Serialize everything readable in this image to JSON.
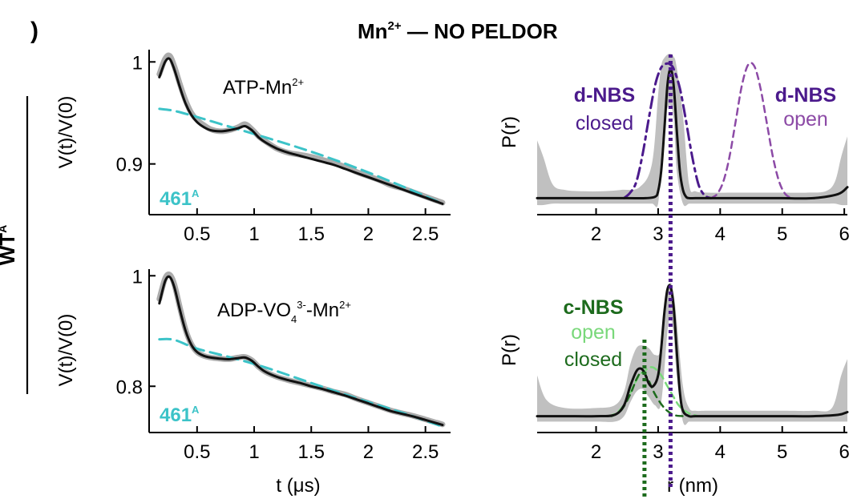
{
  "figure": {
    "panel_label": ")",
    "title_main": "Mn",
    "title_sup": "2+",
    "title_rest": " — NO PELDOR",
    "row_label": "WT",
    "row_label_sup": "A"
  },
  "colors": {
    "data_gray": "#a3a3a3",
    "fit_black": "#111111",
    "background_cyan": "#3cc3c8",
    "dnbs_dark": "#4b1a8c",
    "dnbs_light": "#8c4aa6",
    "cnbs_dark": "#1d6b1d",
    "cnbs_light": "#79d87a"
  },
  "chart_data": [
    {
      "id": "top-left",
      "type": "line",
      "annotation_main": "ATP-Mn",
      "annotation_sup": "2+",
      "label_main": "461",
      "label_sup": "A",
      "xlabel": "",
      "ylabel": "V(t)/V(0)",
      "xlim": [
        0.08,
        2.72
      ],
      "ylim": [
        0.855,
        1.012
      ],
      "xticks": [
        0.5,
        1,
        1.5,
        2,
        2.5
      ],
      "xtick_labels": [
        "0.5",
        "1",
        "1.5",
        "2",
        "2.5"
      ],
      "yticks": [
        1,
        0.9
      ],
      "ytick_labels": [
        "1",
        "0.9"
      ],
      "series": [
        {
          "name": "data",
          "style": "gray-dots",
          "x": [
            0.17,
            0.22,
            0.26,
            0.3,
            0.35,
            0.4,
            0.45,
            0.5,
            0.56,
            0.62,
            0.7,
            0.78,
            0.86,
            0.92,
            0.98,
            1.04,
            1.1,
            1.2,
            1.3,
            1.4,
            1.5,
            1.6,
            1.7,
            1.8,
            1.9,
            2.0,
            2.1,
            2.2,
            2.3,
            2.4,
            2.5,
            2.6,
            2.65
          ],
          "y": [
            0.988,
            1.003,
            1.006,
            0.996,
            0.978,
            0.962,
            0.95,
            0.943,
            0.938,
            0.934,
            0.932,
            0.933,
            0.936,
            0.939,
            0.934,
            0.927,
            0.922,
            0.915,
            0.911,
            0.909,
            0.907,
            0.904,
            0.901,
            0.897,
            0.892,
            0.888,
            0.884,
            0.879,
            0.876,
            0.872,
            0.868,
            0.864,
            0.862
          ]
        },
        {
          "name": "fit",
          "style": "black-solid",
          "x": [
            0.17,
            0.22,
            0.26,
            0.3,
            0.35,
            0.4,
            0.45,
            0.5,
            0.56,
            0.62,
            0.7,
            0.78,
            0.86,
            0.92,
            0.98,
            1.04,
            1.1,
            1.2,
            1.3,
            1.4,
            1.5,
            1.6,
            1.7,
            1.8,
            1.9,
            2.0,
            2.1,
            2.2,
            2.3,
            2.4,
            2.5,
            2.6,
            2.65
          ],
          "y": [
            0.985,
            1.0,
            1.003,
            0.993,
            0.975,
            0.959,
            0.948,
            0.941,
            0.936,
            0.933,
            0.932,
            0.933,
            0.935,
            0.937,
            0.933,
            0.926,
            0.921,
            0.915,
            0.911,
            0.908,
            0.905,
            0.902,
            0.899,
            0.895,
            0.891,
            0.887,
            0.883,
            0.879,
            0.875,
            0.871,
            0.867,
            0.863,
            0.861
          ]
        },
        {
          "name": "background",
          "style": "cyan-dashed",
          "x": [
            0.17,
            0.3,
            0.5,
            0.8,
            1.1,
            1.5,
            1.9,
            2.3,
            2.65
          ],
          "y": [
            0.954,
            0.952,
            0.946,
            0.936,
            0.926,
            0.912,
            0.896,
            0.878,
            0.861
          ]
        }
      ]
    },
    {
      "id": "bottom-left",
      "type": "line",
      "annotation_main": "ADP-VO",
      "annotation_sub": "4",
      "annotation_sup1": "3-",
      "annotation_mid": "-Mn",
      "annotation_sup2": "2+",
      "label_main": "461",
      "label_sup": "A",
      "xlabel": "t (μs)",
      "ylabel": "V(t)/V(0)",
      "xlim": [
        0.08,
        2.72
      ],
      "ylim": [
        0.725,
        1.012
      ],
      "xticks": [
        0.5,
        1,
        1.5,
        2,
        2.5
      ],
      "xtick_labels": [
        "0.5",
        "1",
        "1.5",
        "2",
        "2.5"
      ],
      "yticks": [
        1,
        0.8
      ],
      "ytick_labels": [
        "1",
        "0.8"
      ],
      "series": [
        {
          "name": "data",
          "style": "gray-dots",
          "x": [
            0.17,
            0.22,
            0.26,
            0.3,
            0.35,
            0.4,
            0.45,
            0.5,
            0.56,
            0.62,
            0.7,
            0.78,
            0.86,
            0.92,
            0.98,
            1.04,
            1.1,
            1.2,
            1.3,
            1.4,
            1.5,
            1.6,
            1.7,
            1.8,
            1.9,
            2.0,
            2.1,
            2.2,
            2.3,
            2.4,
            2.5,
            2.6,
            2.65
          ],
          "y": [
            0.958,
            0.995,
            1.002,
            0.985,
            0.942,
            0.902,
            0.876,
            0.862,
            0.855,
            0.852,
            0.85,
            0.849,
            0.852,
            0.853,
            0.847,
            0.835,
            0.826,
            0.817,
            0.811,
            0.806,
            0.801,
            0.796,
            0.79,
            0.785,
            0.777,
            0.77,
            0.763,
            0.756,
            0.751,
            0.746,
            0.74,
            0.734,
            0.731
          ]
        },
        {
          "name": "fit",
          "style": "black-solid",
          "x": [
            0.17,
            0.22,
            0.26,
            0.3,
            0.35,
            0.4,
            0.45,
            0.5,
            0.56,
            0.62,
            0.7,
            0.78,
            0.86,
            0.92,
            0.98,
            1.04,
            1.1,
            1.2,
            1.3,
            1.4,
            1.5,
            1.6,
            1.7,
            1.8,
            1.9,
            2.0,
            2.1,
            2.2,
            2.3,
            2.4,
            2.5,
            2.6,
            2.65
          ],
          "y": [
            0.95,
            0.99,
            0.998,
            0.98,
            0.938,
            0.9,
            0.875,
            0.862,
            0.855,
            0.852,
            0.85,
            0.849,
            0.851,
            0.852,
            0.846,
            0.835,
            0.826,
            0.817,
            0.811,
            0.806,
            0.8,
            0.795,
            0.789,
            0.783,
            0.776,
            0.769,
            0.762,
            0.755,
            0.75,
            0.745,
            0.739,
            0.733,
            0.73
          ]
        },
        {
          "name": "background",
          "style": "cyan-dashed",
          "x": [
            0.17,
            0.3,
            0.5,
            0.8,
            1.1,
            1.5,
            1.9,
            2.3,
            2.65
          ],
          "y": [
            0.885,
            0.884,
            0.868,
            0.852,
            0.834,
            0.806,
            0.778,
            0.752,
            0.727
          ]
        }
      ]
    },
    {
      "id": "top-right",
      "type": "line",
      "ylabel": "P(r)",
      "xlabel": "",
      "xlim": [
        1.05,
        6.05
      ],
      "ylim": [
        -0.12,
        1.08
      ],
      "xticks": [
        2,
        3,
        4,
        5,
        6
      ],
      "xtick_labels": [
        "2",
        "3",
        "4",
        "5",
        "6"
      ],
      "legend": {
        "left_title": "d-NBS",
        "left_sub": "closed",
        "right_title": "d-NBS",
        "right_sub": "open"
      },
      "series": [
        {
          "name": "uncertainty",
          "style": "gray-band",
          "x": [
            1.05,
            1.15,
            1.3,
            1.5,
            1.8,
            2.1,
            2.4,
            2.7,
            2.9,
            3.0,
            3.05,
            3.1,
            3.18,
            3.25,
            3.3,
            3.4,
            3.5,
            3.6,
            3.8,
            4.2,
            4.6,
            5.0,
            5.4,
            5.7,
            5.85,
            5.95,
            6.05
          ],
          "upper": [
            0.42,
            0.3,
            0.1,
            0.06,
            0.05,
            0.05,
            0.06,
            0.08,
            0.25,
            0.75,
            0.96,
            1.02,
            1.05,
            1.03,
            0.95,
            0.6,
            0.1,
            0.05,
            0.04,
            0.04,
            0.04,
            0.04,
            0.04,
            0.05,
            0.12,
            0.3,
            0.45
          ],
          "lower": [
            -0.05,
            -0.05,
            -0.04,
            -0.04,
            -0.04,
            -0.04,
            -0.04,
            -0.04,
            -0.04,
            -0.04,
            0.3,
            0.55,
            0.68,
            0.58,
            0.2,
            -0.04,
            -0.04,
            -0.04,
            -0.04,
            -0.04,
            -0.04,
            -0.04,
            -0.04,
            -0.04,
            -0.04,
            -0.05,
            -0.05
          ]
        },
        {
          "name": "distance distribution",
          "style": "black-solid",
          "x": [
            1.05,
            1.5,
            2.0,
            2.5,
            2.8,
            2.95,
            3.0,
            3.05,
            3.1,
            3.15,
            3.2,
            3.25,
            3.3,
            3.35,
            3.4,
            3.45,
            3.5,
            3.6,
            3.8,
            4.2,
            4.6,
            5.0,
            5.5,
            5.9,
            6.05
          ],
          "y": [
            0.0,
            0.0,
            0.0,
            0.0,
            0.0,
            0.01,
            0.05,
            0.2,
            0.5,
            0.82,
            0.94,
            0.82,
            0.5,
            0.2,
            0.06,
            0.01,
            0.0,
            0.0,
            0.0,
            0.0,
            0.0,
            0.0,
            0.0,
            0.03,
            0.08
          ]
        },
        {
          "name": "d-NBS closed model",
          "style": "dark-purple-dashdot",
          "x": [
            2.45,
            2.55,
            2.65,
            2.75,
            2.85,
            2.95,
            3.05,
            3.15,
            3.2,
            3.25,
            3.35,
            3.45,
            3.55,
            3.65,
            3.75,
            3.85
          ],
          "y": [
            0.0,
            0.04,
            0.12,
            0.32,
            0.58,
            0.82,
            0.95,
            0.98,
            0.97,
            0.94,
            0.8,
            0.56,
            0.3,
            0.1,
            0.02,
            0.0
          ]
        },
        {
          "name": "d-NBS open model",
          "style": "light-purple-dashed",
          "x": [
            3.85,
            3.95,
            4.05,
            4.15,
            4.25,
            4.35,
            4.45,
            4.55,
            4.65,
            4.75,
            4.85,
            4.95,
            5.05,
            5.15
          ],
          "y": [
            0.0,
            0.03,
            0.12,
            0.3,
            0.56,
            0.82,
            0.97,
            0.96,
            0.8,
            0.55,
            0.3,
            0.12,
            0.03,
            0.0
          ]
        }
      ]
    },
    {
      "id": "bottom-right",
      "type": "line",
      "ylabel": "P(r)",
      "xlabel": "r (nm)",
      "xlim": [
        1.05,
        6.05
      ],
      "ylim": [
        -0.12,
        1.08
      ],
      "xticks": [
        2,
        3,
        4,
        5,
        6
      ],
      "xtick_labels": [
        "2",
        "3",
        "4",
        "5",
        "6"
      ],
      "legend": {
        "title": "c-NBS",
        "open": "open",
        "closed": "closed"
      },
      "series": [
        {
          "name": "uncertainty",
          "style": "gray-band",
          "x": [
            1.05,
            1.2,
            1.5,
            2.0,
            2.3,
            2.45,
            2.55,
            2.65,
            2.75,
            2.85,
            2.95,
            3.05,
            3.15,
            3.2,
            3.25,
            3.3,
            3.4,
            3.5,
            3.6,
            3.8,
            4.2,
            4.6,
            5.0,
            5.5,
            5.8,
            5.95,
            6.05
          ],
          "upper": [
            0.3,
            0.12,
            0.06,
            0.06,
            0.08,
            0.18,
            0.38,
            0.5,
            0.52,
            0.5,
            0.45,
            0.5,
            0.9,
            0.98,
            0.9,
            0.7,
            0.22,
            0.06,
            0.04,
            0.04,
            0.04,
            0.04,
            0.04,
            0.04,
            0.06,
            0.3,
            0.42
          ],
          "lower": [
            -0.04,
            -0.04,
            -0.04,
            -0.04,
            -0.04,
            0.0,
            0.1,
            0.18,
            0.2,
            0.14,
            0.08,
            0.1,
            0.62,
            0.72,
            0.6,
            0.3,
            -0.04,
            -0.04,
            -0.04,
            -0.04,
            -0.04,
            -0.04,
            -0.04,
            -0.04,
            -0.04,
            -0.04,
            -0.04
          ]
        },
        {
          "name": "distance distribution",
          "style": "black-solid",
          "x": [
            1.05,
            1.5,
            2.0,
            2.3,
            2.45,
            2.55,
            2.65,
            2.72,
            2.78,
            2.85,
            2.92,
            3.0,
            3.05,
            3.1,
            3.15,
            3.2,
            3.25,
            3.3,
            3.35,
            3.4,
            3.5,
            3.6,
            4.0,
            4.5,
            5.0,
            5.5,
            5.9,
            6.05
          ],
          "y": [
            0.0,
            0.0,
            0.0,
            0.01,
            0.08,
            0.22,
            0.33,
            0.35,
            0.32,
            0.24,
            0.22,
            0.3,
            0.5,
            0.76,
            0.93,
            0.95,
            0.8,
            0.48,
            0.18,
            0.04,
            0.0,
            0.0,
            0.0,
            0.0,
            0.0,
            0.0,
            0.01,
            0.03
          ]
        },
        {
          "name": "c-NBS open model",
          "style": "light-green-dashed",
          "x": [
            2.2,
            2.35,
            2.5,
            2.6,
            2.7,
            2.8,
            2.88,
            2.95,
            3.05,
            3.15,
            3.25,
            3.35,
            3.5,
            3.65
          ],
          "y": [
            0.0,
            0.03,
            0.12,
            0.22,
            0.3,
            0.34,
            0.36,
            0.35,
            0.3,
            0.22,
            0.14,
            0.07,
            0.02,
            0.0
          ]
        },
        {
          "name": "c-NBS closed model",
          "style": "dark-green-dashed",
          "x": [
            2.25,
            2.4,
            2.55,
            2.65,
            2.72,
            2.78,
            2.85,
            2.95,
            3.1,
            3.25,
            3.4
          ],
          "y": [
            0.0,
            0.04,
            0.16,
            0.27,
            0.32,
            0.31,
            0.26,
            0.16,
            0.06,
            0.01,
            0.0
          ]
        }
      ]
    }
  ],
  "markers": {
    "purple_line_r": 3.2,
    "green_line_r": 2.78
  }
}
